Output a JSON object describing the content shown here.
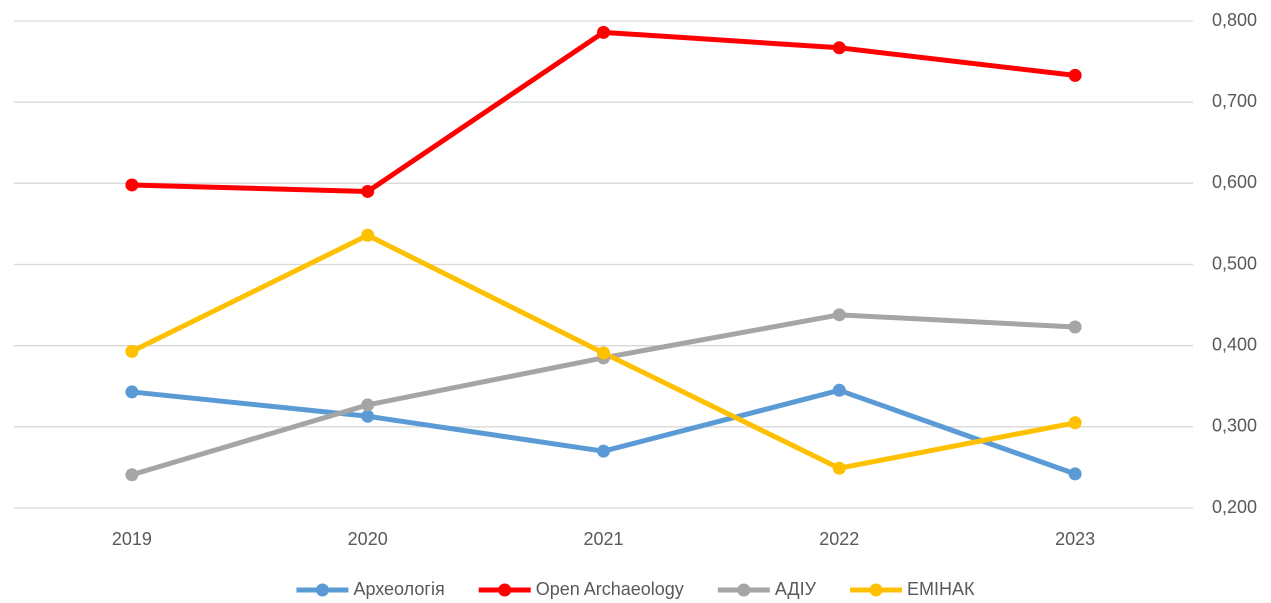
{
  "chart_data": {
    "type": "line",
    "categories": [
      "2019",
      "2020",
      "2021",
      "2022",
      "2023"
    ],
    "series": [
      {
        "name": "Археологія",
        "color": "#5b9bd5",
        "values": [
          0.343,
          0.313,
          0.27,
          0.345,
          0.242
        ]
      },
      {
        "name": "Open Archaeology",
        "color": "#ff0000",
        "values": [
          0.598,
          0.59,
          0.786,
          0.767,
          0.733
        ]
      },
      {
        "name": "АДІУ",
        "color": "#a5a5a5",
        "values": [
          0.241,
          0.327,
          0.385,
          0.438,
          0.423
        ]
      },
      {
        "name": "ЕМІНАК",
        "color": "#ffc000",
        "values": [
          0.393,
          0.536,
          0.391,
          0.249,
          0.305
        ]
      }
    ],
    "ylim": [
      0.2,
      0.8
    ],
    "yticks": [
      {
        "value": 0.2,
        "label": "0,200"
      },
      {
        "value": 0.3,
        "label": "0,300"
      },
      {
        "value": 0.4,
        "label": "0,400"
      },
      {
        "value": 0.5,
        "label": "0,500"
      },
      {
        "value": 0.6,
        "label": "0,600"
      },
      {
        "value": 0.7,
        "label": "0,700"
      },
      {
        "value": 0.8,
        "label": "0,800"
      }
    ],
    "grid": true,
    "legend": "bottom"
  }
}
